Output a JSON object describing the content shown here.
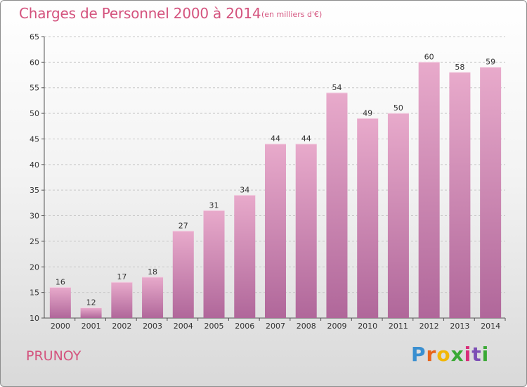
{
  "header": {
    "title": "Charges de Personnel 2000 à 2014",
    "subtitle": "(en milliers d'€)"
  },
  "footer": {
    "commune": "PRUNOY",
    "logo": "Proxiti",
    "logo_colors": [
      "#3a8fd0",
      "#e8641b",
      "#f2b705",
      "#3aa935",
      "#d92d7a",
      "#7c4fb5",
      "#3aa935"
    ]
  },
  "chart_data": {
    "type": "bar",
    "title": "Charges de Personnel 2000 à 2014",
    "subtitle": "(en milliers d'€)",
    "xlabel": "",
    "ylabel": "",
    "categories": [
      "2000",
      "2001",
      "2002",
      "2003",
      "2004",
      "2005",
      "2006",
      "2007",
      "2008",
      "2009",
      "2010",
      "2011",
      "2012",
      "2013",
      "2014"
    ],
    "values": [
      16,
      12,
      17,
      18,
      27,
      31,
      34,
      44,
      44,
      54,
      49,
      50,
      60,
      58,
      59
    ],
    "ylim": [
      10,
      65
    ],
    "yticks": [
      10,
      15,
      20,
      25,
      30,
      35,
      40,
      45,
      50,
      55,
      60,
      65
    ],
    "grid": true,
    "bar_color_top": "#e8aacb",
    "bar_color_bottom": "#b0679a"
  }
}
